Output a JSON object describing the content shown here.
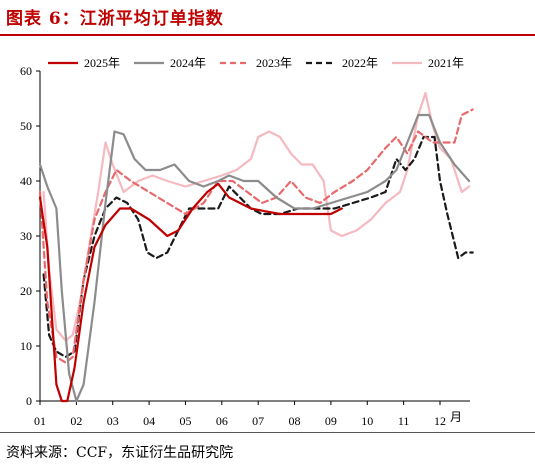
{
  "figure": {
    "title": "图表 6：江浙平均订单指数",
    "source": "资料来源：CCF，东证衍生品研究院"
  },
  "chart_data": {
    "type": "line",
    "x_ticks": [
      "01",
      "02",
      "03",
      "04",
      "05",
      "06",
      "07",
      "08",
      "09",
      "10",
      "11",
      "12"
    ],
    "x_unit": "月",
    "ylim": [
      0,
      60
    ],
    "y_ticks": [
      0,
      10,
      20,
      30,
      40,
      50,
      60
    ],
    "legend_position": "top",
    "series": [
      {
        "name": "2025年",
        "color": "#c00000",
        "dash": "solid",
        "points": [
          [
            1.0,
            37
          ],
          [
            1.2,
            28
          ],
          [
            1.45,
            3
          ],
          [
            1.6,
            0
          ],
          [
            1.75,
            0
          ],
          [
            1.95,
            6
          ],
          [
            2.2,
            18
          ],
          [
            2.5,
            28
          ],
          [
            2.8,
            32
          ],
          [
            3.2,
            35
          ],
          [
            3.5,
            35
          ],
          [
            4.0,
            33
          ],
          [
            4.5,
            30
          ],
          [
            4.8,
            31
          ],
          [
            5.2,
            35
          ],
          [
            5.6,
            38
          ],
          [
            5.9,
            39.5
          ],
          [
            6.2,
            37
          ],
          [
            6.5,
            36
          ],
          [
            6.8,
            35
          ],
          [
            7.2,
            34.5
          ],
          [
            7.6,
            34
          ],
          [
            8.0,
            34
          ],
          [
            8.5,
            34
          ],
          [
            9.0,
            34
          ],
          [
            9.3,
            35
          ]
        ]
      },
      {
        "name": "2024年",
        "color": "#8c8c8c",
        "dash": "solid",
        "points": [
          [
            1.0,
            43
          ],
          [
            1.2,
            39
          ],
          [
            1.45,
            35
          ],
          [
            1.6,
            20
          ],
          [
            1.8,
            5
          ],
          [
            2.0,
            0
          ],
          [
            2.2,
            3
          ],
          [
            2.5,
            18
          ],
          [
            2.8,
            36
          ],
          [
            3.05,
            49
          ],
          [
            3.3,
            48.5
          ],
          [
            3.6,
            44
          ],
          [
            3.9,
            42
          ],
          [
            4.3,
            42
          ],
          [
            4.7,
            43
          ],
          [
            5.1,
            40
          ],
          [
            5.5,
            39
          ],
          [
            5.9,
            40
          ],
          [
            6.2,
            41
          ],
          [
            6.6,
            40
          ],
          [
            7.0,
            40
          ],
          [
            7.5,
            37
          ],
          [
            8.0,
            35
          ],
          [
            8.5,
            35
          ],
          [
            9.0,
            36
          ],
          [
            9.5,
            37
          ],
          [
            10.0,
            38
          ],
          [
            10.5,
            40
          ],
          [
            10.8,
            42
          ],
          [
            11.1,
            47
          ],
          [
            11.4,
            52
          ],
          [
            11.7,
            52
          ],
          [
            12.0,
            47
          ],
          [
            12.4,
            43
          ],
          [
            12.8,
            40
          ]
        ]
      },
      {
        "name": "2023年",
        "color": "#e8696b",
        "dash": "dashed",
        "points": [
          [
            1.0,
            38
          ],
          [
            1.2,
            18
          ],
          [
            1.45,
            8
          ],
          [
            1.7,
            7
          ],
          [
            1.9,
            8
          ],
          [
            2.2,
            22
          ],
          [
            2.5,
            33
          ],
          [
            2.8,
            38
          ],
          [
            3.1,
            42
          ],
          [
            3.5,
            40
          ],
          [
            4.0,
            38
          ],
          [
            4.5,
            36
          ],
          [
            5.0,
            34
          ],
          [
            5.5,
            36
          ],
          [
            5.9,
            40
          ],
          [
            6.3,
            40
          ],
          [
            6.7,
            38
          ],
          [
            7.1,
            36
          ],
          [
            7.5,
            37
          ],
          [
            7.9,
            40
          ],
          [
            8.3,
            37
          ],
          [
            8.7,
            36
          ],
          [
            9.1,
            38
          ],
          [
            9.6,
            40
          ],
          [
            10.0,
            42
          ],
          [
            10.5,
            46
          ],
          [
            10.8,
            48
          ],
          [
            11.1,
            45
          ],
          [
            11.4,
            49
          ],
          [
            11.8,
            47
          ],
          [
            12.1,
            47
          ],
          [
            12.4,
            47
          ],
          [
            12.6,
            52
          ],
          [
            12.9,
            53
          ]
        ]
      },
      {
        "name": "2022年",
        "color": "#1a1a1a",
        "dash": "dashed",
        "points": [
          [
            1.1,
            23
          ],
          [
            1.25,
            12
          ],
          [
            1.45,
            9
          ],
          [
            1.7,
            8
          ],
          [
            1.95,
            9
          ],
          [
            2.2,
            22
          ],
          [
            2.5,
            30
          ],
          [
            2.8,
            35
          ],
          [
            3.1,
            37
          ],
          [
            3.4,
            36
          ],
          [
            3.7,
            33
          ],
          [
            3.95,
            27
          ],
          [
            4.2,
            26
          ],
          [
            4.5,
            27
          ],
          [
            4.8,
            31
          ],
          [
            5.1,
            35
          ],
          [
            5.5,
            35
          ],
          [
            5.9,
            35
          ],
          [
            6.2,
            39
          ],
          [
            6.5,
            37
          ],
          [
            6.8,
            35
          ],
          [
            7.1,
            34
          ],
          [
            7.6,
            34
          ],
          [
            8.1,
            35
          ],
          [
            8.6,
            35
          ],
          [
            9.1,
            35
          ],
          [
            9.6,
            36
          ],
          [
            10.1,
            37
          ],
          [
            10.5,
            38
          ],
          [
            10.8,
            44
          ],
          [
            11.05,
            42
          ],
          [
            11.3,
            44
          ],
          [
            11.55,
            48
          ],
          [
            11.85,
            48
          ],
          [
            12.0,
            40
          ],
          [
            12.2,
            34
          ],
          [
            12.5,
            26
          ],
          [
            12.7,
            27
          ],
          [
            12.9,
            27
          ]
        ]
      },
      {
        "name": "2021年",
        "color": "#f5b9c0",
        "dash": "solid",
        "points": [
          [
            1.1,
            38
          ],
          [
            1.25,
            24
          ],
          [
            1.45,
            13
          ],
          [
            1.7,
            11
          ],
          [
            1.9,
            12
          ],
          [
            2.1,
            18
          ],
          [
            2.4,
            30
          ],
          [
            2.6,
            38
          ],
          [
            2.8,
            47
          ],
          [
            3.0,
            43
          ],
          [
            3.3,
            38
          ],
          [
            3.7,
            40
          ],
          [
            4.1,
            41
          ],
          [
            4.5,
            40
          ],
          [
            5.0,
            39
          ],
          [
            5.5,
            40
          ],
          [
            6.0,
            41
          ],
          [
            6.4,
            42
          ],
          [
            6.8,
            44
          ],
          [
            7.0,
            48
          ],
          [
            7.3,
            49
          ],
          [
            7.6,
            48
          ],
          [
            7.9,
            45
          ],
          [
            8.2,
            43
          ],
          [
            8.5,
            43
          ],
          [
            8.8,
            40
          ],
          [
            9.0,
            31
          ],
          [
            9.3,
            30
          ],
          [
            9.7,
            31
          ],
          [
            10.1,
            33
          ],
          [
            10.5,
            36
          ],
          [
            10.9,
            38
          ],
          [
            11.1,
            42
          ],
          [
            11.4,
            52
          ],
          [
            11.6,
            56
          ],
          [
            11.8,
            50
          ],
          [
            12.0,
            46
          ],
          [
            12.3,
            44
          ],
          [
            12.6,
            38
          ],
          [
            12.8,
            39
          ]
        ]
      }
    ]
  }
}
